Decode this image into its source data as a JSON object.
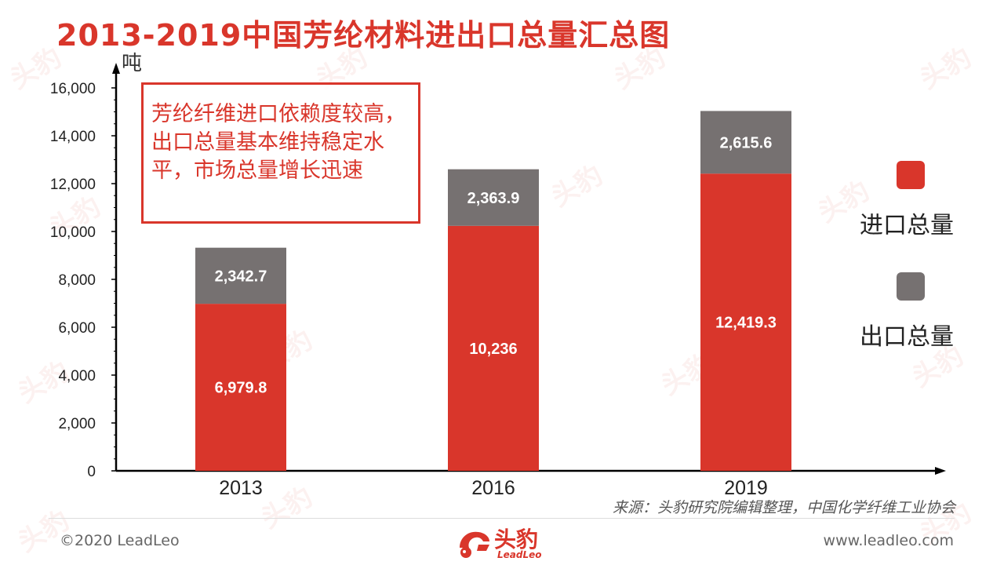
{
  "title": "2013-2019中国芳纶材料进出口总量汇总图",
  "unit_label": "吨",
  "callout": "芳纶纤维进口依赖度较高，出口总量基本维持稳定水平，市场总量增长迅速",
  "legend": {
    "items": [
      {
        "label": "进口总量",
        "color": "#d9362b"
      },
      {
        "label": "出口总量",
        "color": "#767171"
      }
    ]
  },
  "source": "来源：头豹研究院编辑整理，中国化学纤维工业协会",
  "footer": {
    "copyright": "©2020 LeadLeo",
    "website": "www.leadleo.com",
    "logo_text": "头豹",
    "logo_sub": "LeadLeo"
  },
  "watermark_text": "头豹",
  "chart_data": {
    "type": "bar",
    "stacked": true,
    "categories": [
      "2013",
      "2016",
      "2019"
    ],
    "series": [
      {
        "name": "进口总量",
        "color": "#d9362b",
        "values": [
          6979.8,
          10236,
          12419.3
        ],
        "labels": [
          "6,979.8",
          "10,236",
          "12,419.3"
        ]
      },
      {
        "name": "出口总量",
        "color": "#767171",
        "values": [
          2342.7,
          2363.9,
          2615.6
        ],
        "labels": [
          "2,342.7",
          "2,363.9",
          "2,615.6"
        ]
      }
    ],
    "ylabel": "吨",
    "ylim": [
      0,
      16000
    ],
    "yticks": [
      0,
      2000,
      4000,
      6000,
      8000,
      10000,
      12000,
      14000,
      16000
    ],
    "ytick_labels": [
      "0",
      "2,000",
      "4,000",
      "6,000",
      "8,000",
      "10,000",
      "12,000",
      "14,000",
      "16,000"
    ],
    "grid": false,
    "legend_position": "right"
  }
}
